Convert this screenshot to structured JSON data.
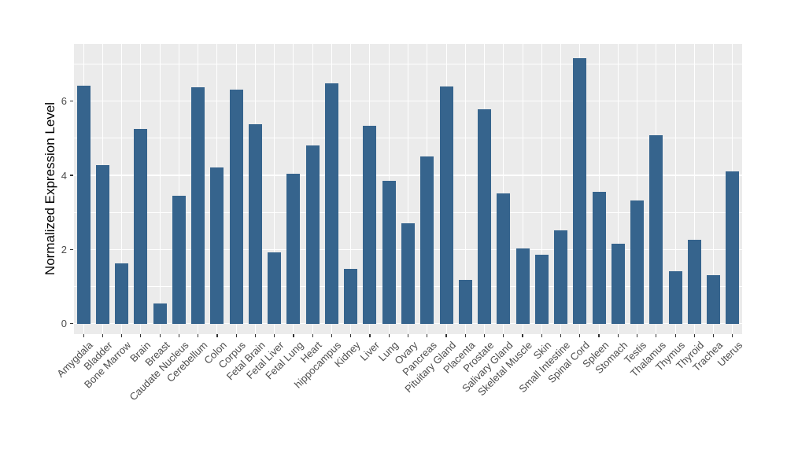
{
  "chart_data": {
    "type": "bar",
    "title": "",
    "xlabel": "",
    "ylabel": "Normalized Expression Level",
    "categories": [
      "Amygdala",
      "Bladder",
      "Bone Marrow",
      "Brain",
      "Breast",
      "Caudate Nucleus",
      "Cerebellum",
      "Colon",
      "Corpus",
      "Fetal Brain",
      "Fetal Liver",
      "Fetal Lung",
      "Heart",
      "hippocampus",
      "Kidney",
      "Liver",
      "Lung",
      "Ovary",
      "Pancreas",
      "Pituitary Gland",
      "Placenta",
      "Prostate",
      "Salivary Gland",
      "Skeletal Muscle",
      "Skin",
      "Small Intestine",
      "Spinal Cord",
      "Spleen",
      "Stomach",
      "Testis",
      "Thalamus",
      "Thymus",
      "Thyroid",
      "Trachea",
      "Uterus"
    ],
    "values": [
      6.42,
      4.28,
      1.62,
      5.26,
      0.55,
      3.44,
      6.38,
      4.22,
      6.31,
      5.38,
      1.92,
      4.04,
      4.8,
      6.48,
      1.47,
      5.33,
      3.86,
      2.7,
      4.51,
      6.4,
      1.18,
      5.79,
      3.52,
      2.04,
      1.85,
      2.52,
      7.16,
      3.56,
      2.15,
      3.33,
      5.08,
      1.42,
      2.26,
      1.32,
      4.11
    ],
    "y_axis": {
      "ticks": [
        0,
        2,
        4,
        6
      ],
      "minor_ticks": [
        1,
        3,
        5,
        7
      ],
      "range": [
        -0.28,
        7.54
      ]
    },
    "x_tick_rotation_deg": 45,
    "grid": true,
    "legend": "none",
    "colors": {
      "bar": "#36648D",
      "panel_background": "#EBEBEB",
      "gridline": "#FFFFFF",
      "axis_text": "#4D4D4D",
      "axis_title": "#000000",
      "tick_mark": "#333333",
      "figure_background": "#FFFFFF"
    }
  }
}
